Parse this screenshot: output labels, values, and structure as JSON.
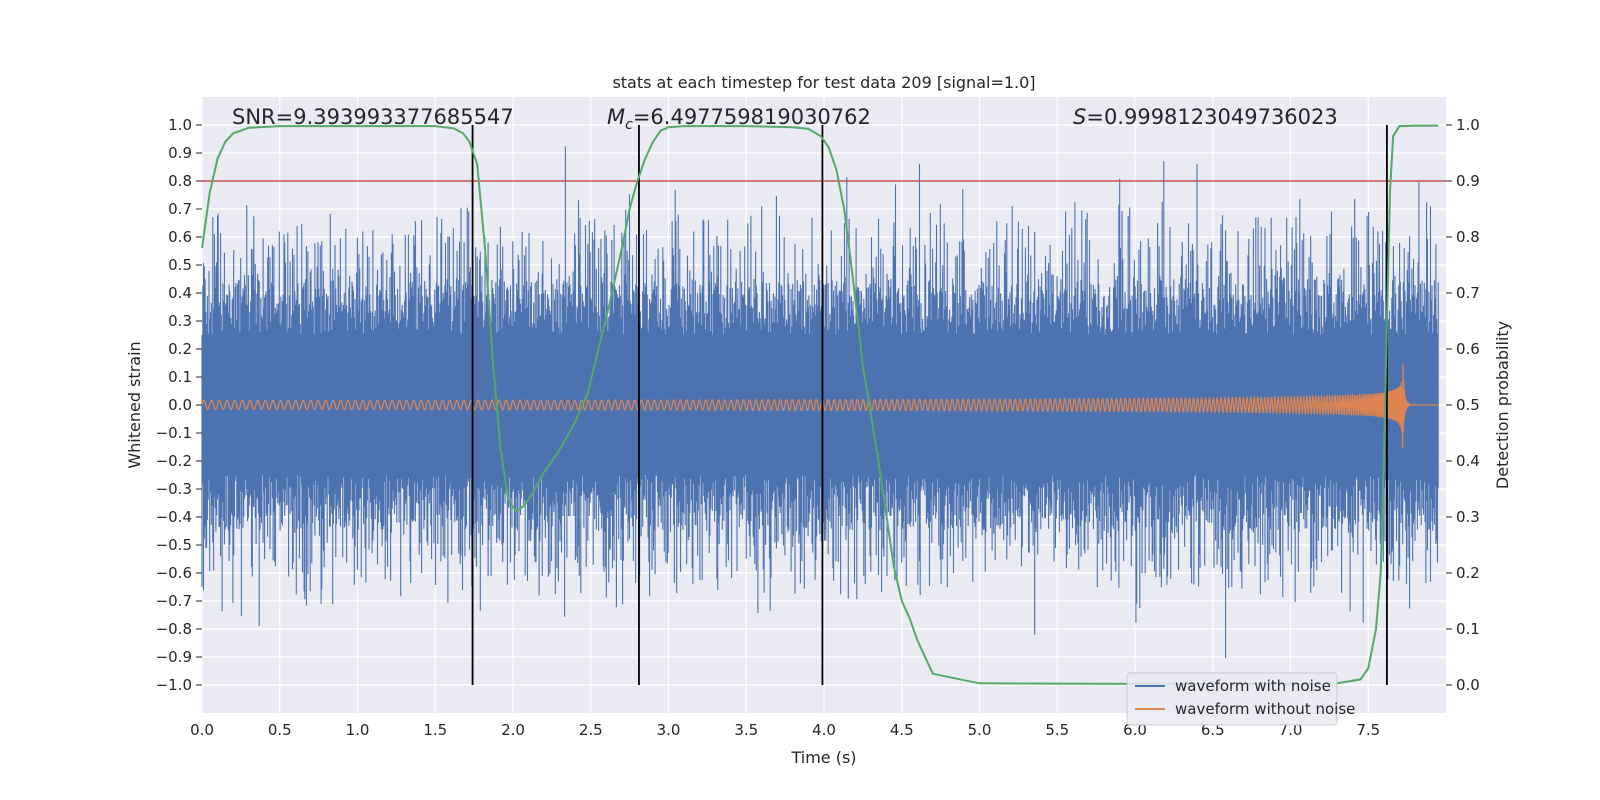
{
  "chart_data": {
    "type": "line",
    "title": "stats at each timestep for test data 209 [signal=1.0]",
    "xlabel": "Time (s)",
    "ylabel": "Whitened strain",
    "y2label": "Detection probability",
    "xlim": [
      0.0,
      8.0
    ],
    "ylim": [
      -1.1,
      1.1
    ],
    "y2lim": [
      -0.05,
      1.05
    ],
    "xticks": [
      "0.0",
      "0.5",
      "1.0",
      "1.5",
      "2.0",
      "2.5",
      "3.0",
      "3.5",
      "4.0",
      "4.5",
      "5.0",
      "5.5",
      "6.0",
      "6.5",
      "7.0",
      "7.5"
    ],
    "yticks": [
      "1.0",
      "0.9",
      "0.8",
      "0.7",
      "0.6",
      "0.5",
      "0.4",
      "0.3",
      "0.2",
      "0.1",
      "0.0",
      "−0.1",
      "−0.2",
      "−0.3",
      "−0.4",
      "−0.5",
      "−0.6",
      "−0.7",
      "−0.8",
      "−0.9",
      "−1.0"
    ],
    "y2ticks": [
      "1.0",
      "0.9",
      "0.8",
      "0.7",
      "0.6",
      "0.5",
      "0.4",
      "0.3",
      "0.2",
      "0.1",
      "0.0"
    ],
    "annotations": {
      "snr": "SNR=9.393993377685547",
      "mc_symbol": "M",
      "mc_sub": "c",
      "mc_value": "=6.497759819030762",
      "s_symbol": "S",
      "s_value": "=0.9998123049736023"
    },
    "threshold": {
      "y2": 0.9,
      "color": "#c44e52"
    },
    "vlines_x": [
      1.74,
      2.81,
      3.99,
      7.62
    ],
    "detection_probability": {
      "x": [
        0.0,
        0.05,
        0.1,
        0.15,
        0.2,
        0.3,
        0.5,
        1.0,
        1.5,
        1.62,
        1.68,
        1.72,
        1.77,
        1.82,
        1.87,
        1.92,
        1.97,
        2.02,
        2.07,
        2.12,
        2.2,
        2.3,
        2.4,
        2.48,
        2.55,
        2.62,
        2.7,
        2.75,
        2.8,
        2.85,
        2.9,
        2.95,
        3.0,
        3.1,
        3.3,
        3.5,
        3.8,
        3.9,
        3.98,
        4.03,
        4.08,
        4.13,
        4.18,
        4.25,
        4.35,
        4.45,
        4.5,
        4.55,
        4.6,
        4.7,
        5.0,
        6.0,
        7.0,
        7.3,
        7.45,
        7.5,
        7.55,
        7.58,
        7.6,
        7.62,
        7.64,
        7.66,
        7.7,
        7.8,
        7.95
      ],
      "y": [
        0.78,
        0.88,
        0.94,
        0.97,
        0.985,
        0.995,
        0.998,
        0.998,
        0.998,
        0.994,
        0.985,
        0.97,
        0.93,
        0.78,
        0.58,
        0.42,
        0.33,
        0.31,
        0.32,
        0.34,
        0.38,
        0.42,
        0.47,
        0.52,
        0.6,
        0.68,
        0.78,
        0.85,
        0.9,
        0.94,
        0.97,
        0.99,
        0.996,
        0.998,
        0.998,
        0.998,
        0.996,
        0.993,
        0.98,
        0.96,
        0.92,
        0.85,
        0.74,
        0.57,
        0.4,
        0.21,
        0.15,
        0.12,
        0.08,
        0.02,
        0.003,
        0.002,
        0.002,
        0.003,
        0.01,
        0.03,
        0.1,
        0.2,
        0.4,
        0.65,
        0.88,
        0.98,
        0.998,
        0.999,
        0.999
      ],
      "color": "#55a868"
    },
    "series": [
      {
        "name": "waveform with noise",
        "color": "#4c72b0"
      },
      {
        "name": "waveform without noise",
        "color": "#dd8452"
      },
      {
        "name": "detection probability",
        "color": "#55a868"
      }
    ],
    "grid": true,
    "legend_position": "bottom-right"
  }
}
